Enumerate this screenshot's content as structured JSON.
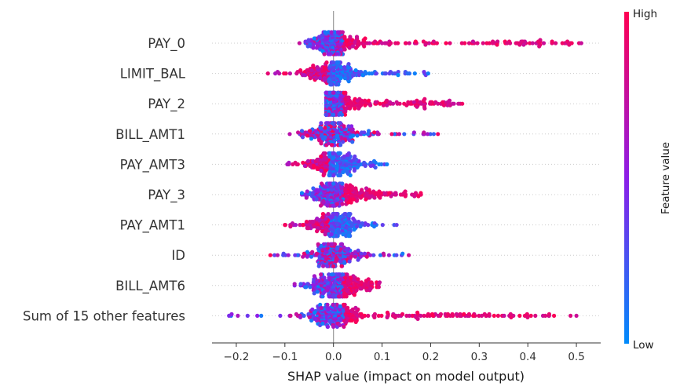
{
  "chart_data": {
    "type": "scatter",
    "subtype": "shap-beeswarm",
    "title": "",
    "xlabel": "SHAP value (impact on model output)",
    "xlim": [
      -0.25,
      0.55
    ],
    "xticks": [
      "−0.2",
      "−0.1",
      "0.0",
      "0.1",
      "0.2",
      "0.3",
      "0.4",
      "0.5"
    ],
    "xtick_values": [
      -0.2,
      -0.1,
      0.0,
      0.1,
      0.2,
      0.3,
      0.4,
      0.5
    ],
    "features": [
      {
        "name": "PAY_0",
        "min": -0.07,
        "max": 0.51,
        "high_direction": "positive"
      },
      {
        "name": "LIMIT_BAL",
        "min": -0.135,
        "max": 0.195,
        "high_direction": "negative"
      },
      {
        "name": "PAY_2",
        "min": -0.015,
        "max": 0.265,
        "high_direction": "positive"
      },
      {
        "name": "BILL_AMT1",
        "min": -0.09,
        "max": 0.215,
        "high_direction": "mixed"
      },
      {
        "name": "PAY_AMT3",
        "min": -0.095,
        "max": 0.11,
        "high_direction": "negative"
      },
      {
        "name": "PAY_3",
        "min": -0.065,
        "max": 0.18,
        "high_direction": "positive"
      },
      {
        "name": "PAY_AMT1",
        "min": -0.1,
        "max": 0.13,
        "high_direction": "negative"
      },
      {
        "name": "ID",
        "min": -0.13,
        "max": 0.155,
        "high_direction": "mixed"
      },
      {
        "name": "BILL_AMT6",
        "min": -0.08,
        "max": 0.095,
        "high_direction": "positive"
      },
      {
        "name": "Sum of 15 other features",
        "min": -0.215,
        "max": 0.5,
        "high_direction": "positive"
      }
    ],
    "colorbar": {
      "label": "Feature value",
      "high": "High",
      "low": "Low"
    },
    "colors": {
      "high": "#ff0052",
      "mid": "#8c1ee8",
      "low": "#008bfb",
      "zero_line": "#999999"
    },
    "grid": false,
    "legend": "colorbar-right"
  }
}
